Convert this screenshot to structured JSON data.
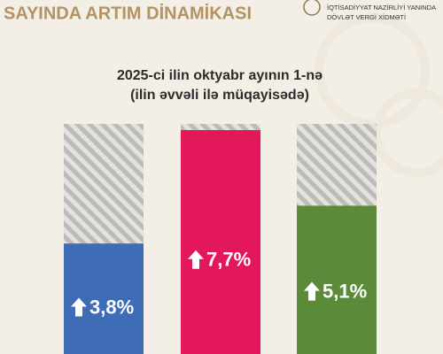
{
  "header": {
    "logo_text": [
      "İQTİSADİYYAT NAZİRLİYİ YANINDA",
      "DÖVLƏT VERGİ XİDMƏTİ"
    ]
  },
  "chart_data": {
    "type": "bar",
    "title": "SAYINDA ARTIM DİNAMİKASI",
    "subtitle": [
      "2025-ci ilin oktyabr ayının 1-nə",
      "(ilin əvvəli ilə müqayisədə)"
    ],
    "categories": [
      null,
      null,
      null
    ],
    "values": [
      3.8,
      7.7,
      5.1
    ],
    "value_labels": [
      "3,8%",
      "7,7%",
      "5,1%"
    ],
    "colors": [
      "#3e6cb6",
      "#e2185b",
      "#5b8a3a"
    ]
  }
}
